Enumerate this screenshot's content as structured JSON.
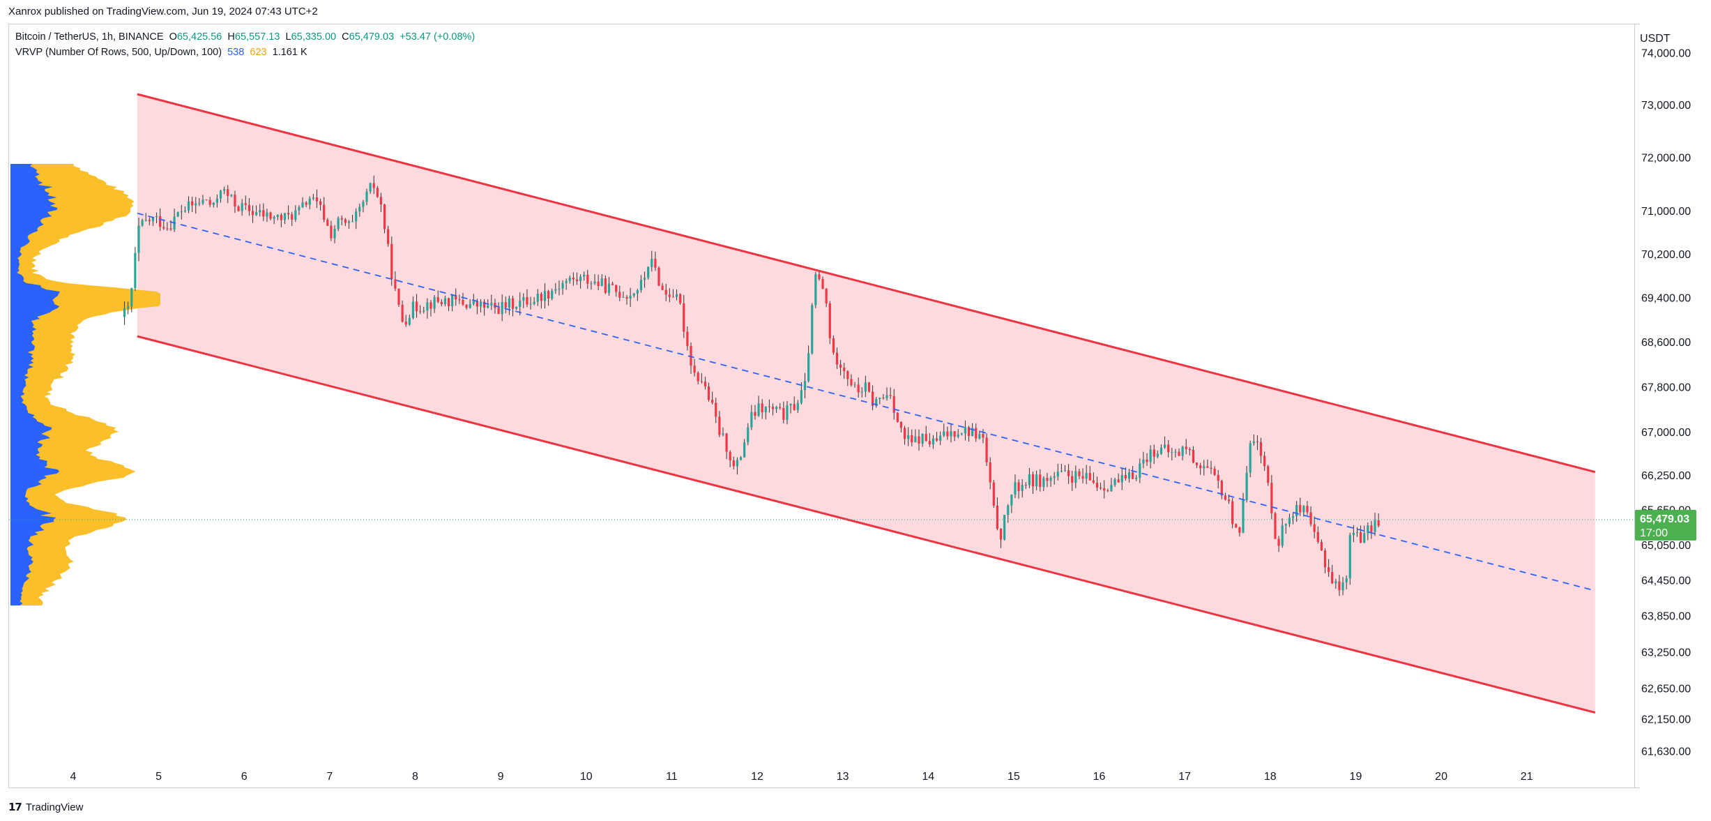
{
  "header": {
    "credit": "Xanrox published on TradingView.com, Jun 19, 2024 07:43 UTC+2"
  },
  "legend": {
    "symbol": "Bitcoin / TetherUS, 1h, BINANCE",
    "o_label": "O",
    "o_value": "65,425.56",
    "h_label": "H",
    "h_value": "65,557.13",
    "l_label": "L",
    "l_value": "65,335.00",
    "c_label": "C",
    "c_value": "65,479.03",
    "change": "+53.47 (+0.08%)",
    "vrvp_label": "VRVP (Number Of Rows, 500, Up/Down, 100)",
    "vrvp_up": "538",
    "vrvp_down": "623",
    "vrvp_total": "1.161 K"
  },
  "footer": {
    "brand": "TradingView"
  },
  "colors": {
    "up": "#089981",
    "down": "#f23645",
    "candle_up": "#26a69a",
    "candle_down": "#f23645",
    "channel_line": "#ef3340",
    "channel_fill": "#fcd6da",
    "midline": "#2962ff",
    "vp_up": "#2962ff",
    "vp_down": "#fbbf2a",
    "price_label_bg": "#4caf50"
  },
  "chart_data": {
    "type": "candlestick",
    "y_scale": "log",
    "y_unit": "USDT",
    "ylim": [
      61420,
      74550
    ],
    "xlim": [
      3.25,
      22.25
    ],
    "x_tick_labels": [
      "4",
      "5",
      "6",
      "7",
      "8",
      "9",
      "10",
      "11",
      "12",
      "13",
      "14",
      "15",
      "16",
      "17",
      "18",
      "19",
      "20",
      "21"
    ],
    "x_tick_values": [
      4,
      5,
      6,
      7,
      8,
      9,
      10,
      11,
      12,
      13,
      14,
      15,
      16,
      17,
      18,
      19,
      20,
      21
    ],
    "y_tick_values": [
      74000,
      73000,
      72000,
      71000,
      70200,
      69400,
      68600,
      67800,
      67000,
      66250,
      65650,
      65050,
      64450,
      63850,
      63250,
      62650,
      62150,
      61630
    ],
    "y_tick_labels": [
      "74,000.00",
      "73,000.00",
      "72,000.00",
      "71,000.00",
      "70,200.00",
      "69,400.00",
      "68,600.00",
      "67,800.00",
      "67,000.00",
      "66,250.00",
      "65,650.00",
      "65,050.00",
      "64,450.00",
      "63,850.00",
      "63,250.00",
      "62,650.00",
      "62,150.00",
      "61,630.00"
    ],
    "last_price": 65479.03,
    "last_price_label": "65,479.03",
    "countdown_label": "17:00",
    "price_path": [
      [
        4.6,
        69050
      ],
      [
        4.7,
        69200
      ],
      [
        4.75,
        69900
      ],
      [
        4.8,
        70650
      ],
      [
        4.9,
        70800
      ],
      [
        5.0,
        70850
      ],
      [
        5.15,
        70700
      ],
      [
        5.3,
        71000
      ],
      [
        5.45,
        71100
      ],
      [
        5.6,
        71200
      ],
      [
        5.7,
        71000
      ],
      [
        5.75,
        71500
      ],
      [
        5.8,
        71350
      ],
      [
        5.95,
        71100
      ],
      [
        6.1,
        71000
      ],
      [
        6.3,
        70900
      ],
      [
        6.5,
        70850
      ],
      [
        6.7,
        71000
      ],
      [
        6.8,
        71250
      ],
      [
        6.95,
        71000
      ],
      [
        7.05,
        70550
      ],
      [
        7.15,
        70800
      ],
      [
        7.3,
        70700
      ],
      [
        7.45,
        71200
      ],
      [
        7.55,
        71500
      ],
      [
        7.65,
        71050
      ],
      [
        7.75,
        70000
      ],
      [
        7.83,
        69300
      ],
      [
        7.9,
        68950
      ],
      [
        8.0,
        69200
      ],
      [
        8.2,
        69300
      ],
      [
        8.4,
        69350
      ],
      [
        8.6,
        69300
      ],
      [
        8.8,
        69250
      ],
      [
        9.0,
        69200
      ],
      [
        9.2,
        69300
      ],
      [
        9.4,
        69350
      ],
      [
        9.6,
        69500
      ],
      [
        9.8,
        69700
      ],
      [
        10.0,
        69750
      ],
      [
        10.2,
        69650
      ],
      [
        10.4,
        69500
      ],
      [
        10.55,
        69450
      ],
      [
        10.7,
        69650
      ],
      [
        10.78,
        70100
      ],
      [
        10.85,
        69900
      ],
      [
        10.95,
        69450
      ],
      [
        11.05,
        69500
      ],
      [
        11.15,
        69200
      ],
      [
        11.2,
        68700
      ],
      [
        11.3,
        68050
      ],
      [
        11.4,
        67900
      ],
      [
        11.5,
        67500
      ],
      [
        11.6,
        67000
      ],
      [
        11.7,
        66700
      ],
      [
        11.78,
        66300
      ],
      [
        11.85,
        66600
      ],
      [
        11.95,
        67200
      ],
      [
        12.05,
        67400
      ],
      [
        12.2,
        67400
      ],
      [
        12.35,
        67300
      ],
      [
        12.5,
        67500
      ],
      [
        12.6,
        67800
      ],
      [
        12.68,
        69100
      ],
      [
        12.72,
        69800
      ],
      [
        12.8,
        69600
      ],
      [
        12.86,
        69200
      ],
      [
        12.92,
        68300
      ],
      [
        13.0,
        68300
      ],
      [
        13.1,
        68000
      ],
      [
        13.2,
        67700
      ],
      [
        13.3,
        67800
      ],
      [
        13.4,
        67500
      ],
      [
        13.5,
        67600
      ],
      [
        13.6,
        67700
      ],
      [
        13.68,
        67200
      ],
      [
        13.75,
        66900
      ],
      [
        13.85,
        66800
      ],
      [
        13.95,
        66900
      ],
      [
        14.1,
        66800
      ],
      [
        14.25,
        66950
      ],
      [
        14.4,
        67050
      ],
      [
        14.55,
        67000
      ],
      [
        14.68,
        66900
      ],
      [
        14.75,
        66200
      ],
      [
        14.82,
        65500
      ],
      [
        14.9,
        65200
      ],
      [
        14.98,
        65800
      ],
      [
        15.05,
        66000
      ],
      [
        15.2,
        66150
      ],
      [
        15.4,
        66150
      ],
      [
        15.6,
        66250
      ],
      [
        15.8,
        66200
      ],
      [
        15.95,
        66150
      ],
      [
        16.05,
        66050
      ],
      [
        16.2,
        66100
      ],
      [
        16.35,
        66150
      ],
      [
        16.45,
        66250
      ],
      [
        16.55,
        66500
      ],
      [
        16.7,
        66700
      ],
      [
        16.85,
        66650
      ],
      [
        16.95,
        66600
      ],
      [
        17.05,
        66750
      ],
      [
        17.15,
        66500
      ],
      [
        17.3,
        66350
      ],
      [
        17.45,
        66050
      ],
      [
        17.55,
        65750
      ],
      [
        17.62,
        65400
      ],
      [
        17.7,
        65300
      ],
      [
        17.78,
        66600
      ],
      [
        17.82,
        67050
      ],
      [
        17.88,
        66800
      ],
      [
        17.95,
        66500
      ],
      [
        18.0,
        66200
      ],
      [
        18.08,
        65500
      ],
      [
        18.12,
        65000
      ],
      [
        18.18,
        65300
      ],
      [
        18.3,
        65650
      ],
      [
        18.45,
        65600
      ],
      [
        18.55,
        65200
      ],
      [
        18.65,
        64900
      ],
      [
        18.75,
        64500
      ],
      [
        18.85,
        64300
      ],
      [
        18.92,
        64400
      ],
      [
        18.98,
        65200
      ],
      [
        19.05,
        65300
      ],
      [
        19.12,
        65150
      ],
      [
        19.2,
        65300
      ],
      [
        19.3,
        65479
      ]
    ],
    "overlays": {
      "upper_channel": [
        [
          4.75,
          73200
        ],
        [
          21.8,
          66300
        ]
      ],
      "lower_channel": [
        [
          4.75,
          68700
        ],
        [
          21.8,
          62250
        ]
      ],
      "midline": [
        [
          4.75,
          70950
        ],
        [
          21.8,
          64270
        ]
      ]
    }
  }
}
